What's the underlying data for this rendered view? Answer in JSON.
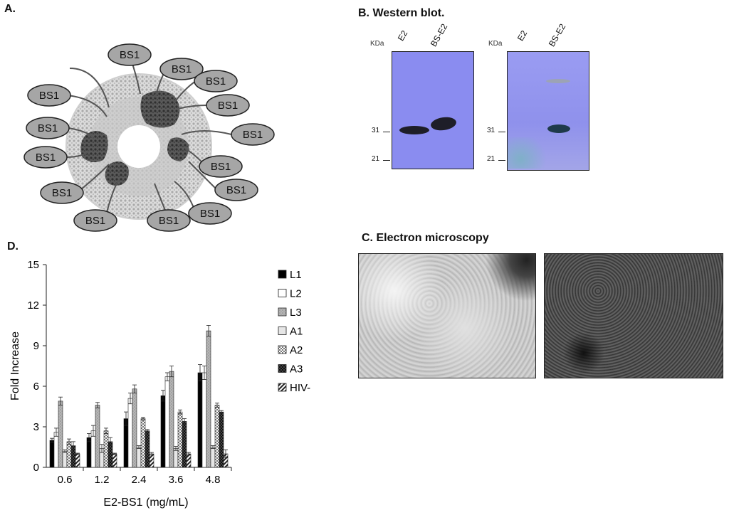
{
  "panels": {
    "a": {
      "label": "A.",
      "tag": "BS1"
    },
    "b": {
      "label": "B. Western blot.",
      "blots": [
        {
          "kda_label": "KDa",
          "lanes": [
            "E2",
            "BS-E2"
          ],
          "markers": [
            "31",
            "21"
          ]
        },
        {
          "kda_label": "KDa",
          "lanes": [
            "E2",
            "BS-E2"
          ],
          "markers": [
            "31",
            "21"
          ]
        }
      ]
    },
    "c": {
      "label": "C. Electron microscopy"
    },
    "d": {
      "label": "D."
    }
  },
  "chart_data": {
    "type": "bar",
    "categories": [
      "0.6",
      "1.2",
      "2.4",
      "3.6",
      "4.8"
    ],
    "xlabel": "E2-BS1 (mg/mL)",
    "ylabel": "Fold Increase",
    "ylim": [
      0,
      15
    ],
    "yticks": [
      "0",
      "3",
      "6",
      "9",
      "12",
      "15"
    ],
    "grid": false,
    "legend": "right",
    "series": [
      {
        "name": "L1",
        "values": [
          2.0,
          2.2,
          3.6,
          5.3,
          7.0
        ],
        "errors": [
          0.15,
          0.3,
          0.5,
          0.4,
          0.6
        ],
        "fill": "black"
      },
      {
        "name": "L2",
        "values": [
          2.6,
          2.7,
          5.1,
          6.7,
          7.0
        ],
        "errors": [
          0.3,
          0.4,
          0.4,
          0.3,
          0.5
        ],
        "fill": "white"
      },
      {
        "name": "L3",
        "values": [
          4.9,
          4.6,
          5.8,
          7.1,
          10.1
        ],
        "errors": [
          0.3,
          0.2,
          0.3,
          0.4,
          0.4
        ],
        "fill": "lightdots"
      },
      {
        "name": "A1",
        "values": [
          1.2,
          1.4,
          1.5,
          1.4,
          1.5
        ],
        "errors": [
          0.1,
          0.3,
          0.1,
          0.15,
          0.1
        ],
        "fill": "light"
      },
      {
        "name": "A2",
        "values": [
          1.9,
          2.7,
          3.6,
          4.1,
          4.6
        ],
        "errors": [
          0.2,
          0.2,
          0.1,
          0.15,
          0.15
        ],
        "fill": "check"
      },
      {
        "name": "A3",
        "values": [
          1.6,
          1.9,
          2.7,
          3.4,
          4.1
        ],
        "errors": [
          0.3,
          0.3,
          0.1,
          0.2,
          0.1
        ],
        "fill": "darkcheck"
      },
      {
        "name": "HIV-",
        "values": [
          1.0,
          1.0,
          1.0,
          1.0,
          1.0
        ],
        "errors": [
          0.05,
          0.05,
          0.1,
          0.1,
          0.3
        ],
        "fill": "diag"
      }
    ]
  }
}
